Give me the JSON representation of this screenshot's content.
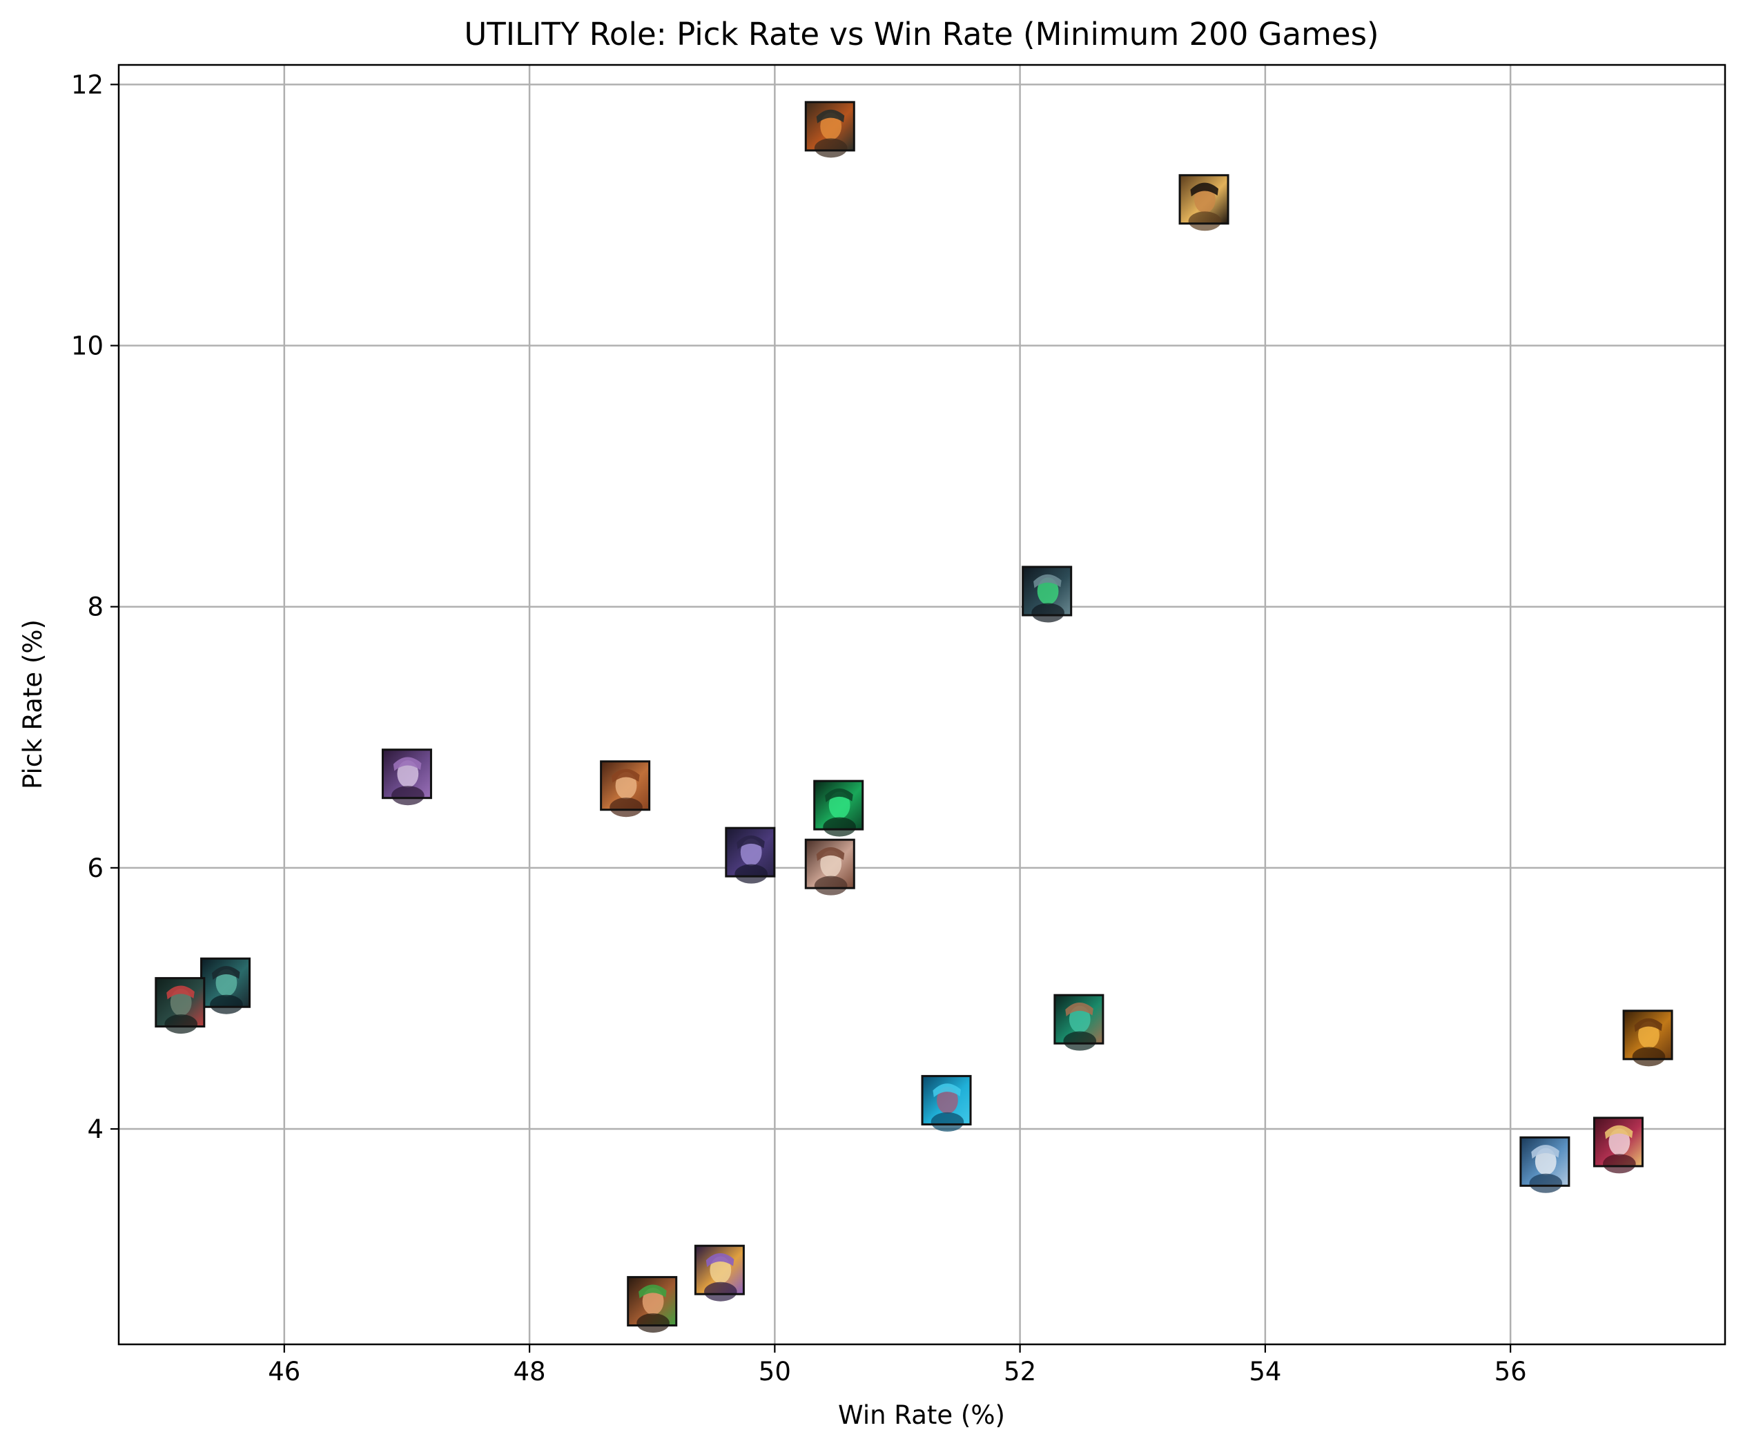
{
  "chart_data": {
    "type": "scatter",
    "title": "UTILITY Role: Pick Rate vs Win Rate (Minimum 200 Games)",
    "xlabel": "Win Rate (%)",
    "ylabel": "Pick Rate (%)",
    "xlim": [
      44.65,
      57.75
    ],
    "ylim": [
      2.35,
      12.15
    ],
    "xticks": [
      46,
      48,
      50,
      52,
      54,
      56
    ],
    "yticks": [
      4,
      6,
      8,
      10,
      12
    ],
    "grid": true,
    "marker": "champion-portrait-icon",
    "points": [
      {
        "x": 50.45,
        "y": 11.68,
        "palette": [
          "#3b2a1c",
          "#b5541e",
          "#e08a3a",
          "#2a2f2a"
        ]
      },
      {
        "x": 53.5,
        "y": 11.12,
        "palette": [
          "#5a3c1c",
          "#e2b25a",
          "#c98848",
          "#1e1610"
        ]
      },
      {
        "x": 52.22,
        "y": 8.12,
        "palette": [
          "#0f1820",
          "#2c4a55",
          "#3bd07a",
          "#6b8a92"
        ]
      },
      {
        "x": 47.0,
        "y": 6.72,
        "palette": [
          "#2c1838",
          "#6a4a8a",
          "#d4c0e0",
          "#9a70b8"
        ]
      },
      {
        "x": 48.78,
        "y": 6.63,
        "palette": [
          "#4a2414",
          "#c0703a",
          "#e8b080",
          "#8a4420"
        ]
      },
      {
        "x": 50.52,
        "y": 6.48,
        "palette": [
          "#082818",
          "#1aa85a",
          "#30e080",
          "#0c4a2a"
        ]
      },
      {
        "x": 49.8,
        "y": 6.12,
        "palette": [
          "#1a1830",
          "#4a3a7a",
          "#9a8ad0",
          "#2a2448"
        ]
      },
      {
        "x": 50.45,
        "y": 6.03,
        "palette": [
          "#4a3028",
          "#c8a090",
          "#e8d0c0",
          "#7a4a38"
        ]
      },
      {
        "x": 45.52,
        "y": 5.12,
        "palette": [
          "#0c1c24",
          "#2a6a6a",
          "#5ab0a0",
          "#1a2a30"
        ]
      },
      {
        "x": 45.15,
        "y": 4.97,
        "palette": [
          "#10201c",
          "#2a4a44",
          "#6a8070",
          "#c04040"
        ]
      },
      {
        "x": 52.48,
        "y": 4.84,
        "palette": [
          "#0c2420",
          "#1a8a6a",
          "#40c0a0",
          "#a07050"
        ]
      },
      {
        "x": 57.12,
        "y": 4.72,
        "palette": [
          "#3a2008",
          "#c07818",
          "#f0b040",
          "#6a3a10"
        ]
      },
      {
        "x": 51.4,
        "y": 4.22,
        "palette": [
          "#0a4a6a",
          "#20b0d8",
          "#9a6080",
          "#40c8e8"
        ]
      },
      {
        "x": 56.88,
        "y": 3.9,
        "palette": [
          "#4a1020",
          "#b03050",
          "#f0d0d8",
          "#e8c070"
        ]
      },
      {
        "x": 56.28,
        "y": 3.75,
        "palette": [
          "#1a3a5a",
          "#5a90c0",
          "#e0e8f0",
          "#b0c8e0"
        ]
      },
      {
        "x": 49.55,
        "y": 2.92,
        "palette": [
          "#2a1a40",
          "#e0a040",
          "#f0d090",
          "#8a60c0"
        ]
      },
      {
        "x": 49.0,
        "y": 2.68,
        "palette": [
          "#2a1a10",
          "#a05a30",
          "#e0a070",
          "#40a040"
        ]
      }
    ]
  }
}
